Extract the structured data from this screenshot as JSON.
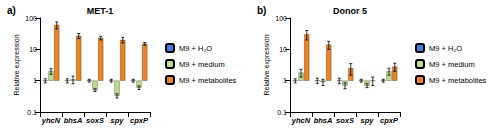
{
  "chart_data": [
    {
      "type": "bar",
      "panel_label": "a)",
      "title": "MET-1",
      "y_label": "Relative expression",
      "log": "y",
      "legend": "right",
      "grid": false,
      "categories": [
        "yhcN",
        "bhsA",
        "soxS",
        "spy",
        "cpxP"
      ],
      "ylim": [
        0.1,
        100
      ],
      "yticks": [
        0.1,
        1,
        10,
        100
      ],
      "series": [
        {
          "name": "M9 + H₂O",
          "color": "#3d7fd6",
          "values": [
            1.0,
            1.0,
            1.0,
            1.0,
            1.0
          ],
          "errors": [
            0.15,
            0.15,
            0.1,
            0.1,
            0.1
          ]
        },
        {
          "name": "M9 + medium",
          "color": "#b9e18c",
          "values": [
            2.0,
            1.1,
            0.5,
            0.33,
            0.6
          ],
          "errors": [
            0.4,
            0.3,
            0.05,
            0.05,
            0.08
          ]
        },
        {
          "name": "M9 + metabolites",
          "color": "#f0821e",
          "values": [
            60,
            27,
            23,
            20,
            15
          ],
          "errors": [
            15,
            5,
            3,
            4,
            1.5
          ]
        }
      ]
    },
    {
      "type": "bar",
      "panel_label": "b)",
      "title": "Donor 5",
      "y_label": "Relative expression",
      "log": "y",
      "legend": "right",
      "grid": false,
      "categories": [
        "yhcN",
        "bhsA",
        "soxS",
        "spy",
        "cpxP"
      ],
      "ylim": [
        0.1,
        100
      ],
      "yticks": [
        0.1,
        1,
        10,
        100
      ],
      "series": [
        {
          "name": "M9 + H₂O",
          "color": "#3d7fd6",
          "values": [
            1.0,
            1.0,
            1.0,
            1.0,
            1.0
          ],
          "errors": [
            0.15,
            0.2,
            0.2,
            0.1,
            0.1
          ]
        },
        {
          "name": "M9 + medium",
          "color": "#b9e18c",
          "values": [
            1.8,
            0.9,
            0.7,
            0.7,
            2.0
          ],
          "errors": [
            0.5,
            0.2,
            0.15,
            0.1,
            0.5
          ]
        },
        {
          "name": "M9 + metabolites",
          "color": "#f0821e",
          "values": [
            30,
            14,
            2.5,
            1.0,
            2.8
          ],
          "errors": [
            10,
            4,
            1,
            0.3,
            0.8
          ]
        }
      ]
    }
  ]
}
